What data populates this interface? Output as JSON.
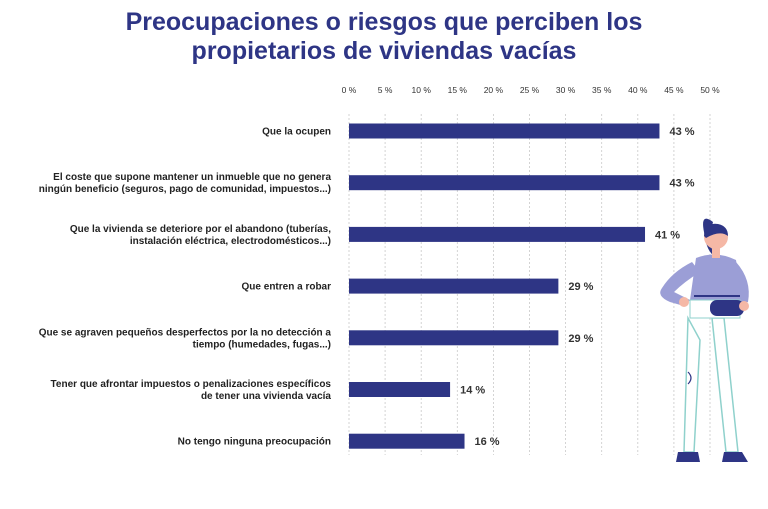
{
  "chart_data": {
    "type": "bar",
    "orientation": "horizontal",
    "title": [
      "Preocupaciones o riesgos que perciben los",
      "propietarios de viviendas vacías"
    ],
    "categories": [
      [
        "Que la ocupen"
      ],
      [
        "El coste que supone mantener un inmueble que no genera",
        "ningún beneficio (seguros, pago de comunidad, impuestos...)"
      ],
      [
        "Que la vivienda se deteriore por el abandono (tuberías,",
        "instalación eléctrica, electrodomésticos...)"
      ],
      [
        "Que entren a robar"
      ],
      [
        "Que se agraven pequeños desperfectos por la no detección a",
        "tiempo (humedades, fugas...)"
      ],
      [
        "Tener que afrontar impuestos o penalizaciones específicos",
        "de tener una vivienda vacía"
      ],
      [
        "No tengo ninguna preocupación"
      ]
    ],
    "values": [
      43,
      43,
      41,
      29,
      29,
      14,
      16
    ],
    "value_labels": [
      "43 %",
      "43 %",
      "41 %",
      "29 %",
      "29 %",
      "14 %",
      "16 %"
    ],
    "ticks": [
      0,
      5,
      10,
      15,
      20,
      25,
      30,
      35,
      40,
      45,
      50
    ],
    "tick_labels": [
      "0 %",
      "5 %",
      "10 %",
      "15 %",
      "20 %",
      "25 %",
      "30 %",
      "35 %",
      "40 %",
      "45 %",
      "50 %"
    ],
    "xlim": [
      0,
      50
    ],
    "grid": true,
    "colors": {
      "bar": "#2e3585",
      "title": "#2e3585",
      "grid": "#c9c9c9"
    }
  }
}
